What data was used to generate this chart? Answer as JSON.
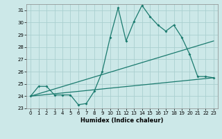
{
  "xlabel": "Humidex (Indice chaleur)",
  "ylabel": "",
  "xlim": [
    -0.5,
    23.5
  ],
  "ylim": [
    23,
    31.5
  ],
  "yticks": [
    23,
    24,
    25,
    26,
    27,
    28,
    29,
    30,
    31
  ],
  "xticks": [
    0,
    1,
    2,
    3,
    4,
    5,
    6,
    7,
    8,
    9,
    10,
    11,
    12,
    13,
    14,
    15,
    16,
    17,
    18,
    19,
    20,
    21,
    22,
    23
  ],
  "bg_color": "#cce8e8",
  "grid_color": "#aacfcf",
  "line_color": "#1a7a6e",
  "line1_x": [
    0,
    1,
    2,
    3,
    4,
    5,
    6,
    7,
    8,
    9,
    10,
    11,
    12,
    13,
    14,
    15,
    16,
    17,
    18,
    19,
    20,
    21,
    22,
    23
  ],
  "line1_y": [
    24.0,
    24.8,
    24.8,
    24.1,
    24.1,
    24.1,
    23.3,
    23.4,
    24.4,
    26.0,
    28.8,
    31.2,
    28.5,
    30.1,
    31.4,
    30.5,
    29.8,
    29.3,
    29.8,
    28.8,
    27.4,
    25.6,
    25.6,
    25.5
  ],
  "line2_x": [
    0,
    23
  ],
  "line2_y": [
    24.0,
    28.5
  ],
  "line3_x": [
    0,
    23
  ],
  "line3_y": [
    24.0,
    25.5
  ],
  "title_fontsize": 6,
  "axis_fontsize": 6,
  "tick_fontsize": 5
}
